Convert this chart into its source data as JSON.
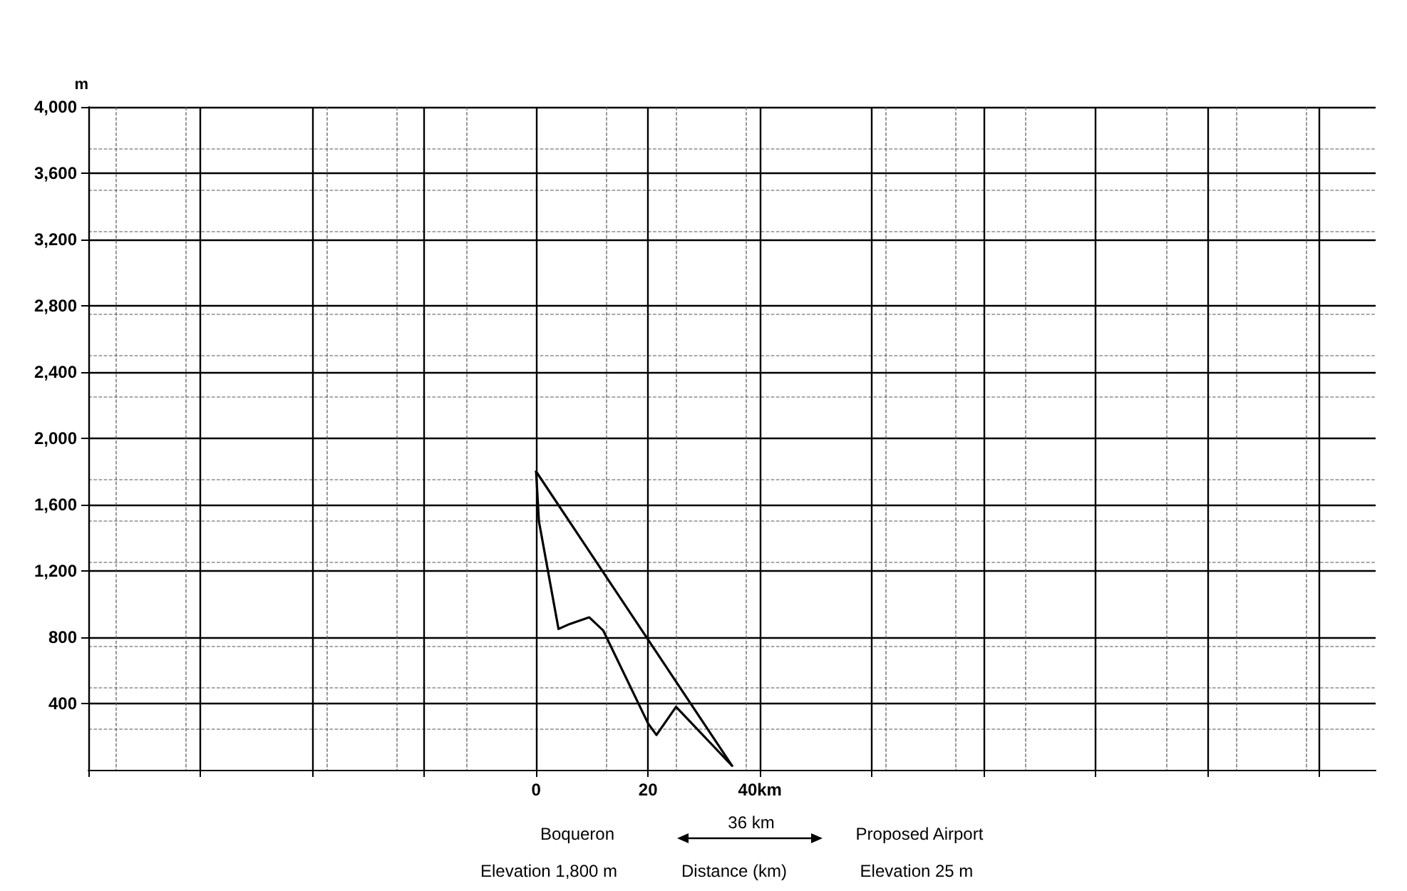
{
  "chart_data": {
    "type": "line",
    "ylabel": "m",
    "xlabel": "Distance (km)",
    "xlim": [
      -80,
      150
    ],
    "xticks": [
      {
        "value": -80,
        "label": null
      },
      {
        "value": -60,
        "label": null
      },
      {
        "value": -40,
        "label": null
      },
      {
        "value": -20,
        "label": null
      },
      0,
      20,
      {
        "value": 40,
        "label": "40km"
      },
      {
        "value": 60,
        "label": null
      },
      {
        "value": 80,
        "label": null
      },
      {
        "value": 100,
        "label": null
      },
      {
        "value": 120,
        "label": null
      },
      {
        "value": 140,
        "label": null
      }
    ],
    "ylim": [
      0,
      4000
    ],
    "yticks": [
      {
        "value": 400,
        "label": "400"
      },
      {
        "value": 800,
        "label": "800"
      },
      {
        "value": 1200,
        "label": "1,200"
      },
      {
        "value": 1600,
        "label": "1,600"
      },
      {
        "value": 2000,
        "label": "2,000"
      },
      {
        "value": 2400,
        "label": "2,400"
      },
      {
        "value": 2800,
        "label": "2,800"
      },
      {
        "value": 3200,
        "label": "3,200"
      },
      {
        "value": 3600,
        "label": "3,600"
      },
      {
        "value": 4000,
        "label": "4,000"
      }
    ],
    "grid": true,
    "marker": "none",
    "line_style": "solid",
    "series": [
      {
        "color": "#000000",
        "x": [
          0,
          0.5,
          4,
          6,
          9.5,
          12,
          20,
          21.5,
          25,
          35
        ],
        "values": [
          1800,
          1500,
          850,
          880,
          920,
          840,
          280,
          210,
          380,
          25
        ]
      },
      {
        "color": "#000000",
        "x": [
          0,
          35
        ],
        "values": [
          1800,
          25
        ]
      }
    ],
    "annotations": [
      "Boqueron",
      "36 km",
      "Proposed Airport",
      "Elevation 1,800 m",
      "Elevation 25 m"
    ]
  }
}
